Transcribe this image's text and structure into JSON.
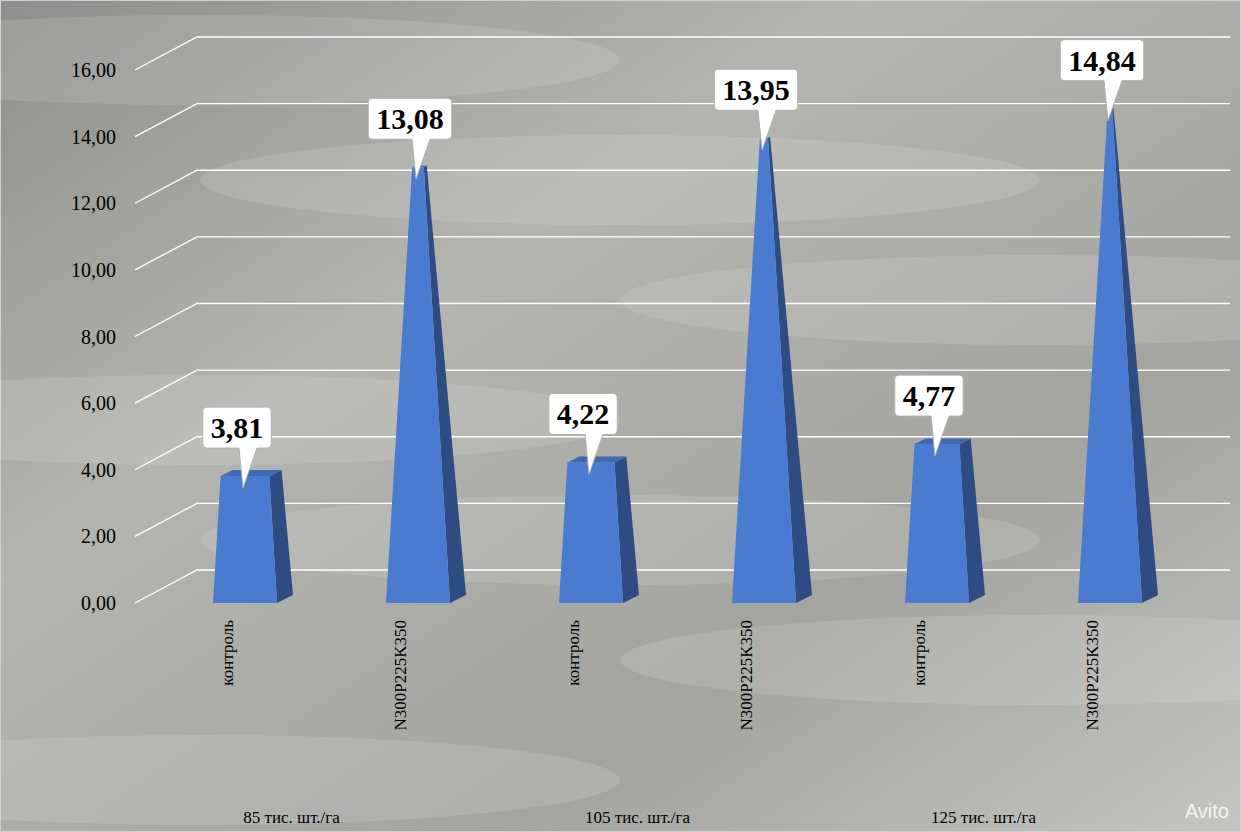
{
  "chart_data": {
    "type": "bar",
    "categories": [
      "контроль",
      "N300P225K350",
      "контроль",
      "N300P225K350",
      "контроль",
      "N300P225K350"
    ],
    "group_labels": [
      "85 тис. шт./га",
      "105 тис. шт./га",
      "125 тис. шт./га"
    ],
    "values": [
      3.81,
      13.08,
      4.22,
      13.95,
      4.77,
      14.84
    ],
    "value_labels": [
      "3,81",
      "13,08",
      "4,22",
      "13,95",
      "4,77",
      "14,84"
    ],
    "color": "#4a7bd0",
    "ylim": [
      0,
      16
    ],
    "yticks": [
      {
        "value": 0,
        "label": "0,00"
      },
      {
        "value": 2,
        "label": "2,00"
      },
      {
        "value": 4,
        "label": "4,00"
      },
      {
        "value": 6,
        "label": "6,00"
      },
      {
        "value": 8,
        "label": "8,00"
      },
      {
        "value": 10,
        "label": "10,00"
      },
      {
        "value": 12,
        "label": "12,00"
      },
      {
        "value": 14,
        "label": "14,00"
      },
      {
        "value": 16,
        "label": "16,00"
      }
    ],
    "grid": true,
    "data_labels": true,
    "watermark": "Avito"
  }
}
